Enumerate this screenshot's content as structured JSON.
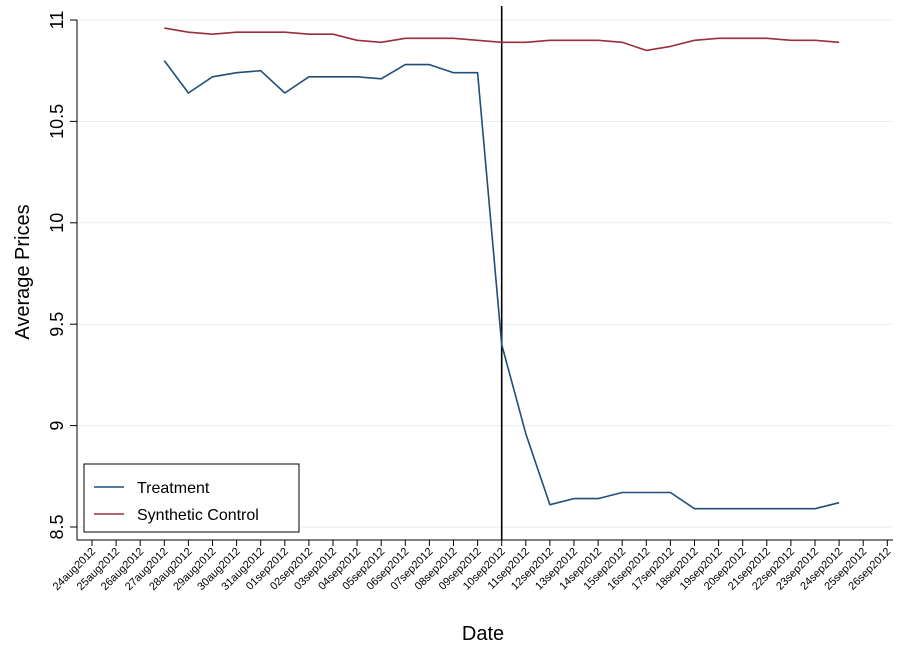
{
  "chart_data": {
    "type": "line",
    "xlabel": "Date",
    "ylabel": "Average Prices",
    "ylim": [
      8.5,
      11
    ],
    "yticks": [
      8.5,
      9,
      9.5,
      10,
      10.5,
      11
    ],
    "ytick_labels": [
      "8.5",
      "9",
      "9.5",
      "10",
      "10.5",
      "11"
    ],
    "x": [
      "24aug2012",
      "25aug2012",
      "26aug2012",
      "27aug2012",
      "28aug2012",
      "29aug2012",
      "30aug2012",
      "31aug2012",
      "01sep2012",
      "02sep2012",
      "03sep2012",
      "04sep2012",
      "05sep2012",
      "06sep2012",
      "07sep2012",
      "08sep2012",
      "09sep2012",
      "10sep2012",
      "11sep2012",
      "12sep2012",
      "13sep2012",
      "14sep2012",
      "15sep2012",
      "16sep2012",
      "17sep2012",
      "18sep2012",
      "19sep2012",
      "20sep2012",
      "21sep2012",
      "22sep2012",
      "23sep2012",
      "24sep2012",
      "25sep2012",
      "26sep2012"
    ],
    "grid": true,
    "vline": "10sep2012",
    "legend_position": "bottom-left",
    "series": [
      {
        "name": "Treatment",
        "color": "#1f4e79",
        "values": [
          null,
          null,
          null,
          10.8,
          10.64,
          10.72,
          10.74,
          10.75,
          10.64,
          10.72,
          10.72,
          10.72,
          10.71,
          10.78,
          10.78,
          10.74,
          10.74,
          9.4,
          8.96,
          8.61,
          8.64,
          8.64,
          8.67,
          8.67,
          8.67,
          8.59,
          8.59,
          8.59,
          8.59,
          8.59,
          8.59,
          8.62,
          null,
          null
        ]
      },
      {
        "name": "Synthetic Control",
        "color": "#9b2f3a",
        "values": [
          null,
          null,
          null,
          10.96,
          10.94,
          10.93,
          10.94,
          10.94,
          10.94,
          10.93,
          10.93,
          10.9,
          10.89,
          10.91,
          10.91,
          10.91,
          10.9,
          10.89,
          10.89,
          10.9,
          10.9,
          10.9,
          10.89,
          10.85,
          10.87,
          10.9,
          10.91,
          10.91,
          10.91,
          10.9,
          10.9,
          10.89,
          null,
          null
        ]
      }
    ]
  }
}
